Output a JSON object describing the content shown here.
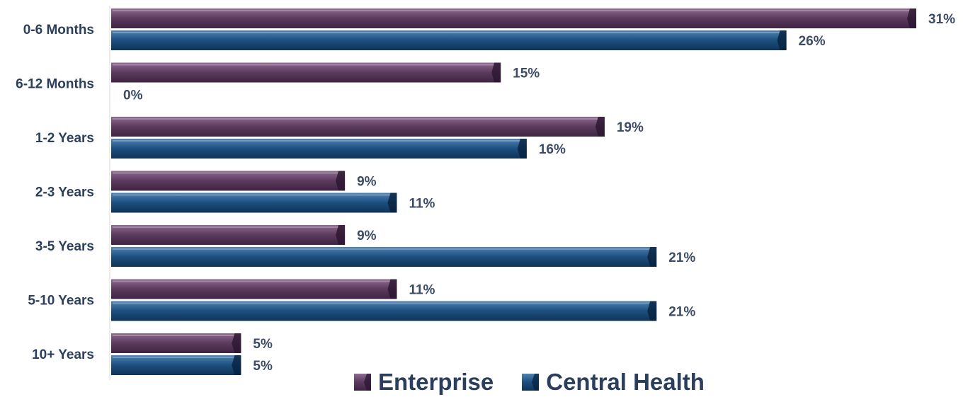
{
  "chart_data": {
    "type": "bar",
    "orientation": "horizontal",
    "categories": [
      "0-6 Months",
      "6-12 Months",
      "1-2 Years",
      "2-3 Years",
      "3-5 Years",
      "5-10 Years",
      "10+ Years"
    ],
    "series": [
      {
        "name": "Enterprise",
        "values": [
          31,
          15,
          19,
          9,
          9,
          11,
          5
        ],
        "color": "#5b3a5e"
      },
      {
        "name": "Central Health",
        "values": [
          26,
          0,
          16,
          11,
          21,
          21,
          5
        ],
        "color": "#1c4f7e"
      }
    ],
    "value_format": "{v}%",
    "xlim": [
      0,
      31
    ],
    "grid": false,
    "legend_position": "bottom"
  }
}
